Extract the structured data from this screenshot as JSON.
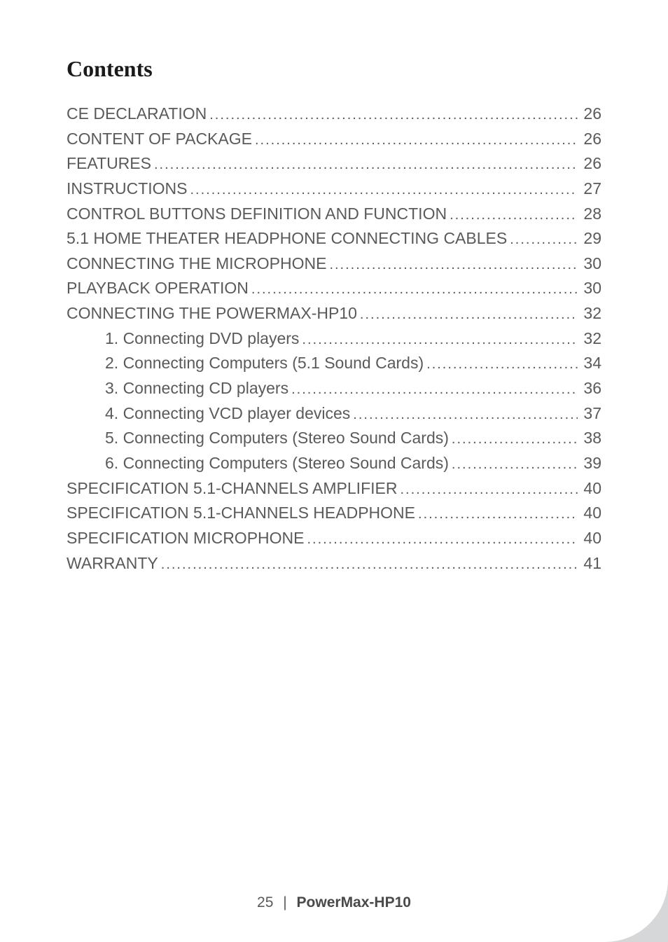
{
  "title": "Contents",
  "toc": [
    {
      "level": 1,
      "label": "CE DECLARATION",
      "page": "26"
    },
    {
      "level": 1,
      "label": "CONTENT OF PACKAGE",
      "page": "26"
    },
    {
      "level": 1,
      "label": "FEATURES",
      "page": "26"
    },
    {
      "level": 1,
      "label": "INSTRUCTIONS",
      "page": "27"
    },
    {
      "level": 1,
      "label": "CONTROL BUTTONS DEFINITION AND FUNCTION",
      "page": "28"
    },
    {
      "level": 1,
      "label": "5.1 HOME THEATER HEADPHONE CONNECTING CABLES",
      "page": "29"
    },
    {
      "level": 1,
      "label": "CONNECTING THE MICROPHONE",
      "page": "30"
    },
    {
      "level": 1,
      "label": "PLAYBACK OPERATION",
      "page": "30"
    },
    {
      "level": 1,
      "label": "CONNECTING THE POWERMAX-HP10",
      "page": "32"
    },
    {
      "level": 2,
      "label": "1. Connecting DVD players",
      "page": "32"
    },
    {
      "level": 2,
      "label": "2. Connecting Computers (5.1 Sound Cards)",
      "page": "34"
    },
    {
      "level": 2,
      "label": "3. Connecting CD players",
      "page": "36"
    },
    {
      "level": 2,
      "label": "4. Connecting VCD player devices",
      "page": "37"
    },
    {
      "level": 2,
      "label": "5. Connecting Computers (Stereo Sound Cards)",
      "page": "38"
    },
    {
      "level": 2,
      "label": "6. Connecting Computers (Stereo Sound Cards)",
      "page": "39"
    },
    {
      "level": 1,
      "label": "SPECIFICATION 5.1-CHANNELS AMPLIFIER",
      "page": "40"
    },
    {
      "level": 1,
      "label": "SPECIFICATION 5.1-CHANNELS HEADPHONE",
      "page": "40"
    },
    {
      "level": 1,
      "label": "SPECIFICATION MICROPHONE",
      "page": "40"
    },
    {
      "level": 1,
      "label": "WARRANTY",
      "page": "41"
    }
  ],
  "footer": {
    "page_number": "25",
    "separator": "|",
    "product_name": "PowerMax-HP10"
  }
}
